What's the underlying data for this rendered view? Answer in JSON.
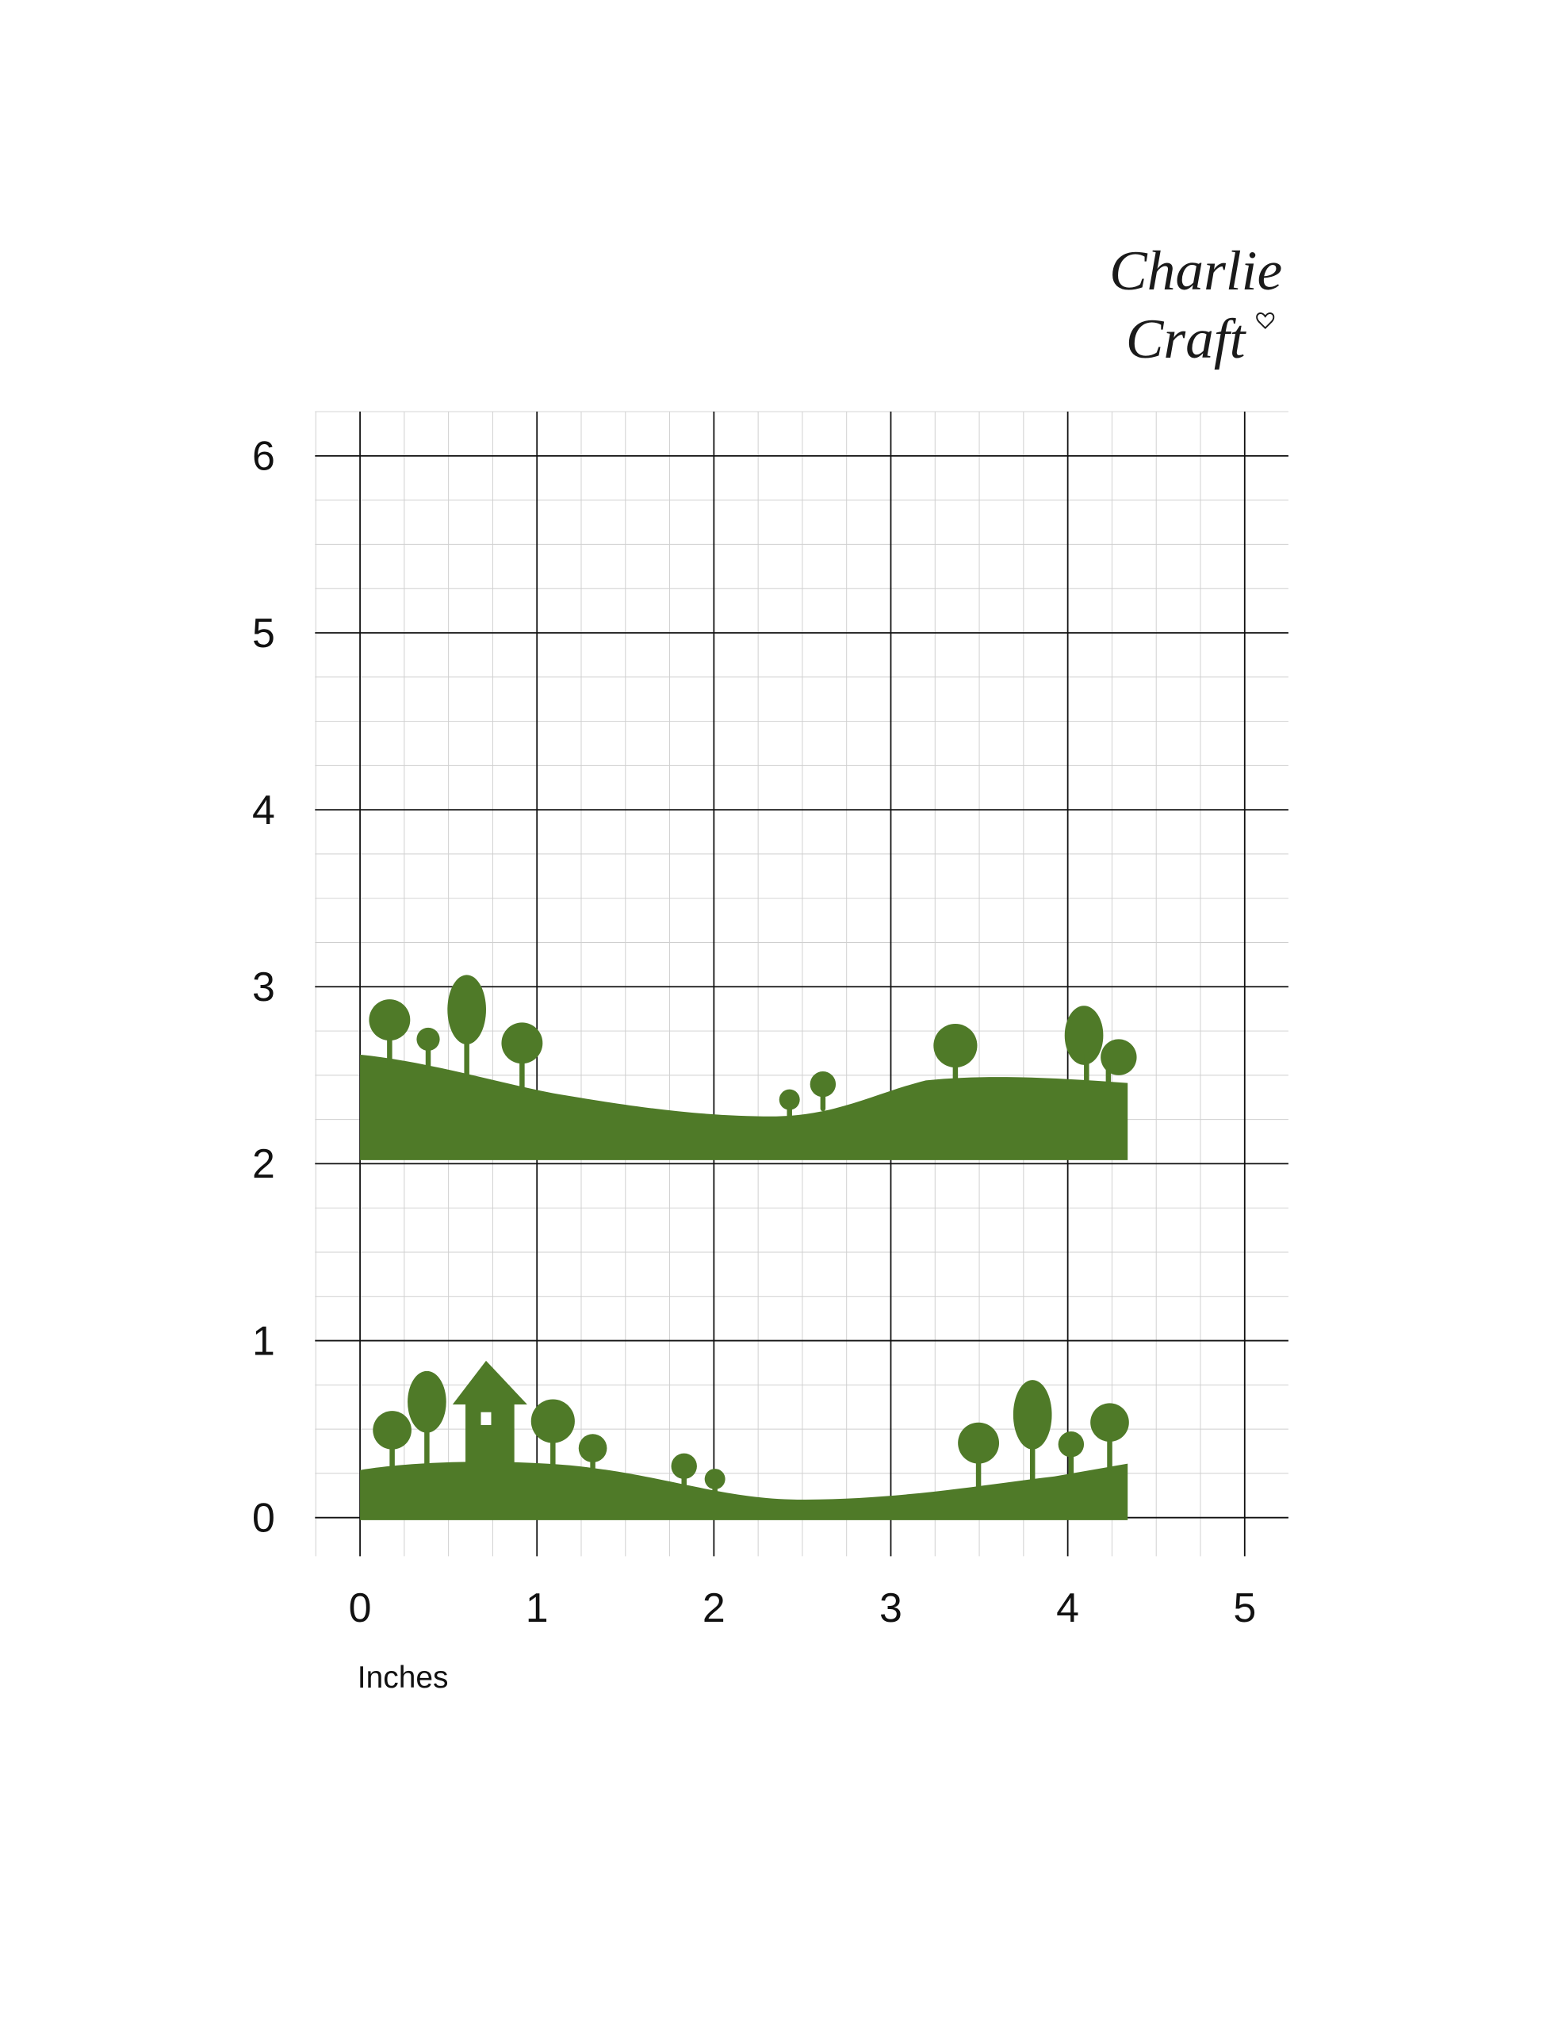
{
  "logo": {
    "line1": "Charlie",
    "line2": "Craft"
  },
  "grid": {
    "yticks": [
      0,
      1,
      2,
      3,
      4,
      5,
      6
    ],
    "xticks": [
      0,
      1,
      2,
      3,
      4,
      5
    ],
    "x_label": "Inches"
  }
}
